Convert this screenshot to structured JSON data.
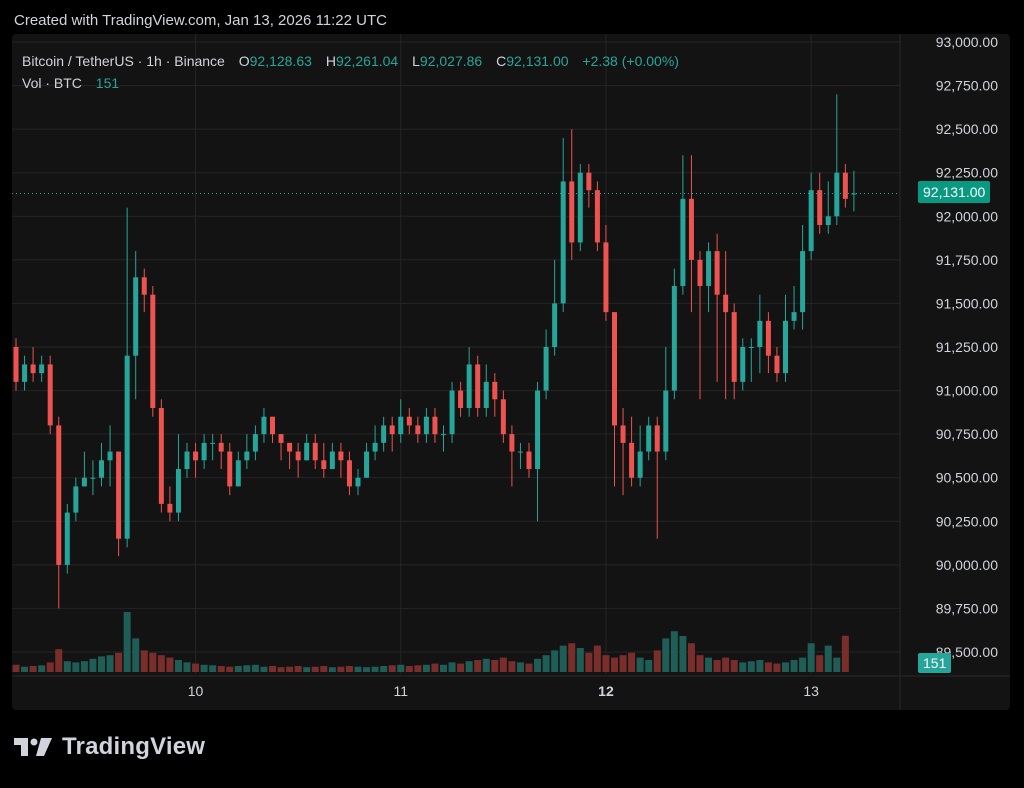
{
  "header": {
    "created_text": "Created with TradingView.com, Jan 13, 2026 11:22 UTC"
  },
  "legend": {
    "symbol": "Bitcoin / TetherUS · 1h · Binance",
    "open_label": "O",
    "open_value": "92,128.63",
    "high_label": "H",
    "high_value": "92,261.04",
    "low_label": "L",
    "low_value": "92,027.86",
    "close_label": "C",
    "close_value": "92,131.00",
    "change": "+2.38 (+0.00%)",
    "vol_label": "Vol · BTC",
    "vol_value": "151"
  },
  "badges": {
    "last_price": "92,131.00",
    "last_volume": "151"
  },
  "footer": {
    "logo_text": "TradingView"
  },
  "colors": {
    "up": "#26a69a",
    "down": "#ef5350",
    "up_volume": "#1f5e57",
    "down_volume": "#7a2e2c",
    "grid": "#252525",
    "text": "#d1d4dc"
  },
  "chart_data": {
    "type": "candlestick",
    "ylim": [
      89500,
      93000
    ],
    "y_ticks": [
      "93,000.00",
      "92,750.00",
      "92,500.00",
      "92,250.00",
      "92,000.00",
      "91,750.00",
      "91,500.00",
      "91,250.00",
      "91,000.00",
      "90,750.00",
      "90,500.00",
      "90,250.00",
      "90,000.00",
      "89,750.00",
      "89,500.00"
    ],
    "y_tick_values": [
      93000,
      92750,
      92500,
      92250,
      92000,
      91750,
      91500,
      91250,
      91000,
      90750,
      90500,
      90250,
      90000,
      89750,
      89500
    ],
    "x_labels": [
      {
        "label": "10",
        "index": 21,
        "bold": false
      },
      {
        "label": "11",
        "index": 45,
        "bold": false
      },
      {
        "label": "12",
        "index": 69,
        "bold": true
      },
      {
        "label": "13",
        "index": 93,
        "bold": false
      }
    ],
    "last_price_line": 92131,
    "candles": [
      [
        91250,
        91050,
        91300,
        91000
      ],
      [
        91050,
        91150,
        91200,
        91000
      ],
      [
        91150,
        91100,
        91250,
        91050
      ],
      [
        91100,
        91150,
        91200,
        91050
      ],
      [
        91150,
        90800,
        91200,
        90750
      ],
      [
        90800,
        90000,
        90850,
        89750
      ],
      [
        90000,
        90300,
        90350,
        89950
      ],
      [
        90300,
        90450,
        90500,
        90250
      ],
      [
        90450,
        90500,
        90650,
        90450
      ],
      [
        90500,
        90500,
        90600,
        90400
      ],
      [
        90500,
        90600,
        90700,
        90450
      ],
      [
        90600,
        90650,
        90800,
        90450
      ],
      [
        90650,
        90150,
        90650,
        90050
      ],
      [
        90150,
        91200,
        92050,
        90100
      ],
      [
        91200,
        91650,
        91800,
        90950
      ],
      [
        91650,
        91550,
        91700,
        91450
      ],
      [
        91550,
        90900,
        91600,
        90850
      ],
      [
        90900,
        90350,
        90950,
        90300
      ],
      [
        90350,
        90300,
        90450,
        90250
      ],
      [
        90300,
        90550,
        90750,
        90250
      ],
      [
        90550,
        90650,
        90700,
        90500
      ],
      [
        90650,
        90600,
        90700,
        90500
      ],
      [
        90600,
        90700,
        90750,
        90550
      ],
      [
        90700,
        90700,
        90750,
        90600
      ],
      [
        90700,
        90650,
        90750,
        90550
      ],
      [
        90650,
        90450,
        90700,
        90400
      ],
      [
        90450,
        90600,
        90650,
        90450
      ],
      [
        90600,
        90650,
        90750,
        90550
      ],
      [
        90650,
        90750,
        90800,
        90600
      ],
      [
        90750,
        90850,
        90900,
        90700
      ],
      [
        90850,
        90750,
        90850,
        90700
      ],
      [
        90750,
        90700,
        90750,
        90600
      ],
      [
        90700,
        90650,
        90700,
        90550
      ],
      [
        90650,
        90600,
        90700,
        90500
      ],
      [
        90600,
        90700,
        90750,
        90600
      ],
      [
        90700,
        90600,
        90750,
        90550
      ],
      [
        90600,
        90550,
        90700,
        90500
      ],
      [
        90550,
        90650,
        90700,
        90550
      ],
      [
        90650,
        90600,
        90700,
        90500
      ],
      [
        90600,
        90450,
        90650,
        90400
      ],
      [
        90450,
        90500,
        90550,
        90400
      ],
      [
        90500,
        90650,
        90700,
        90500
      ],
      [
        90650,
        90700,
        90800,
        90600
      ],
      [
        90700,
        90800,
        90850,
        90650
      ],
      [
        90800,
        90750,
        90850,
        90650
      ],
      [
        90750,
        90850,
        90950,
        90700
      ],
      [
        90850,
        90800,
        90900,
        90750
      ],
      [
        90800,
        90750,
        90850,
        90700
      ],
      [
        90750,
        90850,
        90900,
        90700
      ],
      [
        90850,
        90750,
        90900,
        90700
      ],
      [
        90750,
        90750,
        90800,
        90650
      ],
      [
        90750,
        91000,
        91050,
        90700
      ],
      [
        91000,
        90900,
        91050,
        90850
      ],
      [
        90900,
        91150,
        91250,
        90850
      ],
      [
        91150,
        90900,
        91200,
        90850
      ],
      [
        90900,
        91050,
        91150,
        90850
      ],
      [
        91050,
        90950,
        91100,
        90850
      ],
      [
        90950,
        90750,
        91000,
        90700
      ],
      [
        90750,
        90650,
        90800,
        90450
      ],
      [
        90650,
        90650,
        90700,
        90550
      ],
      [
        90650,
        90550,
        90700,
        90500
      ],
      [
        90550,
        91000,
        91050,
        90250
      ],
      [
        91000,
        91250,
        91350,
        90950
      ],
      [
        91250,
        91500,
        91750,
        91200
      ],
      [
        91500,
        92200,
        92450,
        91450
      ],
      [
        92200,
        91850,
        92500,
        91750
      ],
      [
        91850,
        92250,
        92300,
        91800
      ],
      [
        92250,
        92150,
        92300,
        92050
      ],
      [
        92150,
        91850,
        92200,
        91800
      ],
      [
        91850,
        91450,
        91950,
        91400
      ],
      [
        91450,
        90800,
        91450,
        90450
      ],
      [
        90800,
        90700,
        90900,
        90400
      ],
      [
        90700,
        90500,
        90850,
        90450
      ],
      [
        90500,
        90650,
        90800,
        90450
      ],
      [
        90650,
        90800,
        90850,
        90600
      ],
      [
        90800,
        90650,
        90850,
        90150
      ],
      [
        90650,
        91000,
        91250,
        90600
      ],
      [
        91000,
        91600,
        91700,
        90950
      ],
      [
        91600,
        92100,
        92350,
        91550
      ],
      [
        92100,
        91750,
        92350,
        91450
      ],
      [
        91750,
        91600,
        91800,
        90950
      ],
      [
        91600,
        91800,
        91850,
        91450
      ],
      [
        91800,
        91550,
        91900,
        91050
      ],
      [
        91550,
        91450,
        91800,
        90950
      ],
      [
        91450,
        91050,
        91500,
        90950
      ],
      [
        91050,
        91250,
        91300,
        91000
      ],
      [
        91250,
        91250,
        91300,
        91050
      ],
      [
        91250,
        91400,
        91550,
        91100
      ],
      [
        91400,
        91200,
        91450,
        91100
      ],
      [
        91200,
        91100,
        91250,
        91050
      ],
      [
        91100,
        91400,
        91550,
        91050
      ],
      [
        91400,
        91450,
        91600,
        91350
      ],
      [
        91450,
        91800,
        91950,
        91350
      ],
      [
        91800,
        92150,
        92250,
        91750
      ],
      [
        92150,
        91950,
        92250,
        91900
      ],
      [
        91950,
        92000,
        92200,
        91900
      ],
      [
        92000,
        92250,
        92700,
        91950
      ],
      [
        92250,
        92100,
        92300,
        92050
      ],
      [
        92128.63,
        92131,
        92261.04,
        92027.86
      ]
    ],
    "volumes": [
      30,
      22,
      25,
      28,
      40,
      95,
      45,
      40,
      45,
      55,
      65,
      70,
      80,
      250,
      140,
      90,
      80,
      70,
      60,
      50,
      40,
      35,
      30,
      28,
      25,
      22,
      25,
      28,
      30,
      22,
      25,
      20,
      22,
      25,
      20,
      22,
      25,
      20,
      22,
      25,
      22,
      20,
      22,
      25,
      28,
      30,
      25,
      28,
      30,
      35,
      30,
      40,
      35,
      45,
      50,
      55,
      50,
      60,
      45,
      40,
      35,
      55,
      70,
      90,
      110,
      120,
      100,
      80,
      110,
      70,
      60,
      70,
      80,
      60,
      50,
      90,
      140,
      170,
      150,
      120,
      70,
      60,
      50,
      60,
      50,
      40,
      45,
      50,
      40,
      35,
      40,
      50,
      60,
      120,
      70,
      110,
      60,
      151
    ]
  }
}
